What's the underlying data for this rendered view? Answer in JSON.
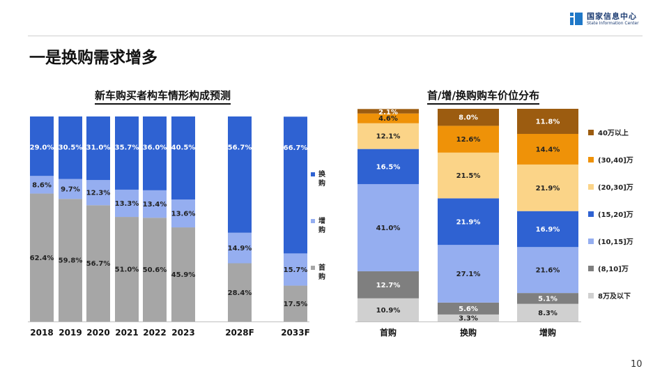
{
  "logo": {
    "name_cn": "国家信息中心",
    "name_en": "State Information Center"
  },
  "heading": "一是换购需求增多",
  "page_number": "10",
  "chart_data": [
    {
      "type": "bar",
      "stacked": true,
      "title": "新车购买者构车情形构成预测",
      "categories": [
        "2018",
        "2019",
        "2020",
        "2021",
        "2022",
        "2023",
        "2028F",
        "2033F"
      ],
      "series": [
        {
          "name": "首购",
          "color": "#a6a6a6",
          "values": [
            62.4,
            59.8,
            56.7,
            51.0,
            50.6,
            45.9,
            28.4,
            17.5
          ],
          "labels": [
            "62.4%",
            "59.8%",
            "56.7%",
            "51.0%",
            "50.6%",
            "45.9%",
            "28.4%",
            "17.5%"
          ]
        },
        {
          "name": "增购",
          "color": "#95aef0",
          "values": [
            8.6,
            9.7,
            12.3,
            13.3,
            13.4,
            13.6,
            14.9,
            15.7
          ],
          "labels": [
            "8.6%",
            "9.7%",
            "12.3%",
            "13.3%",
            "13.4%",
            "13.6%",
            "14.9%",
            "15.7%"
          ]
        },
        {
          "name": "换购",
          "color": "#2f62d2",
          "values": [
            29.0,
            30.5,
            31.0,
            35.7,
            36.0,
            40.5,
            56.7,
            66.7
          ],
          "labels": [
            "29.0%",
            "30.5%",
            "31.0%",
            "35.7%",
            "36.0%",
            "40.5%",
            "56.7%",
            "66.7%"
          ]
        }
      ],
      "legend": {
        "position": "right",
        "order": [
          "换购",
          "增购",
          "首购"
        ]
      }
    },
    {
      "type": "bar",
      "stacked": true,
      "title": "首/增/换购购车价位分布",
      "categories": [
        "首购",
        "换购",
        "增购"
      ],
      "series": [
        {
          "name": "8万及以下",
          "color": "#d0d0d0",
          "values": [
            10.9,
            3.3,
            8.3
          ],
          "labels": [
            "10.9%",
            "3.3%",
            "8.3%"
          ]
        },
        {
          "name": "(8,10]万",
          "color": "#7f7f7f",
          "values": [
            12.7,
            5.6,
            5.1
          ],
          "labels": [
            "12.7%",
            "5.6%",
            "5.1%"
          ]
        },
        {
          "name": "(10,15]万",
          "color": "#95aef0",
          "values": [
            41.0,
            27.1,
            21.6
          ],
          "labels": [
            "41.0%",
            "27.1%",
            "21.6%"
          ]
        },
        {
          "name": "(15,20]万",
          "color": "#2f62d2",
          "values": [
            16.5,
            21.9,
            16.9
          ],
          "labels": [
            "16.5%",
            "21.9%",
            "16.9%"
          ]
        },
        {
          "name": "(20,30]万",
          "color": "#fbd488",
          "values": [
            12.1,
            21.5,
            21.9
          ],
          "labels": [
            "12.1%",
            "21.5%",
            "21.9%"
          ]
        },
        {
          "name": "(30,40]万",
          "color": "#ef9208",
          "values": [
            4.6,
            12.6,
            14.4
          ],
          "labels": [
            "4.6%",
            "12.6%",
            "14.4%"
          ]
        },
        {
          "name": "40万以上",
          "color": "#9c5c10",
          "values": [
            2.1,
            8.0,
            11.8
          ],
          "labels": [
            "2.1%",
            "8.0%",
            "11.8%"
          ]
        }
      ],
      "legend": {
        "position": "right",
        "order": [
          "40万以上",
          "(30,40]万",
          "(20,30]万",
          "(15,20]万",
          "(10,15]万",
          "(8,10]万",
          "8万及以下"
        ]
      }
    }
  ]
}
